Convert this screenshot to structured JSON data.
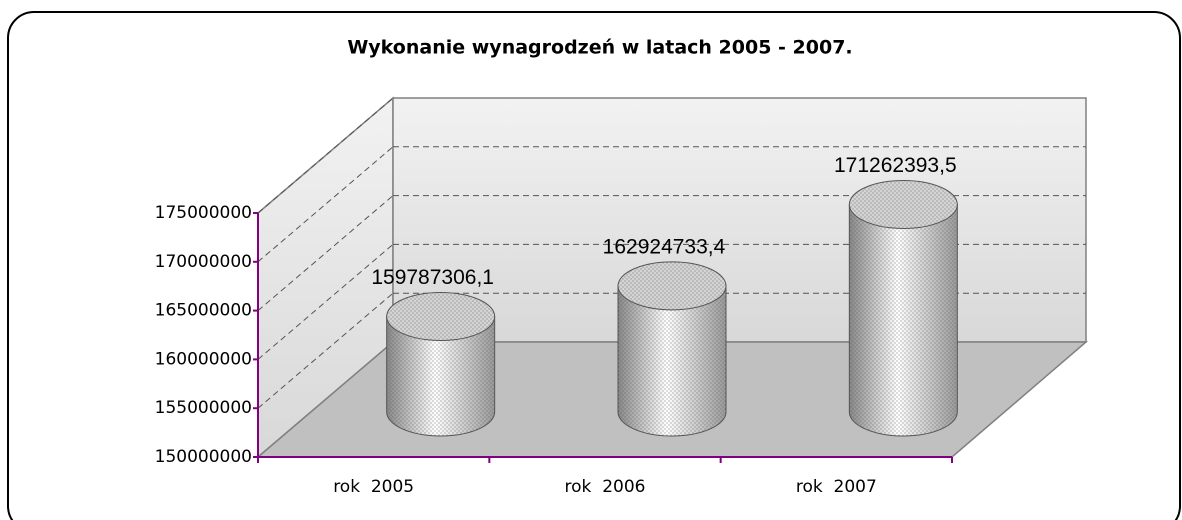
{
  "chart_data": {
    "type": "bar3d",
    "title": "Wykonanie wynagrodzeń w latach 2005 - 2007.",
    "categories": [
      "rok  2005",
      "rok  2006",
      "rok  2007"
    ],
    "values": [
      159787306.1,
      162924733.4,
      171262393.5
    ],
    "value_labels": [
      "159787306,1",
      "162924733,4",
      "171262393,5"
    ],
    "ylim": [
      150000000,
      175000000
    ],
    "yticks": [
      150000000,
      155000000,
      160000000,
      165000000,
      170000000,
      175000000
    ],
    "grid": true
  }
}
